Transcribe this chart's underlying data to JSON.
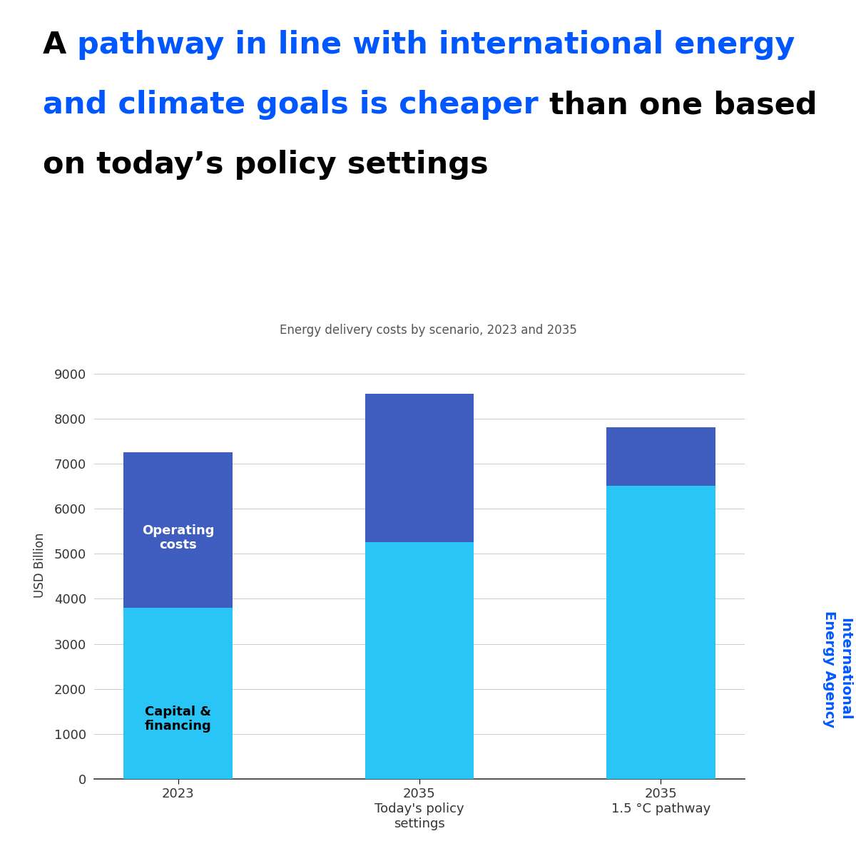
{
  "subtitle": "Energy delivery costs by scenario, 2023 and 2035",
  "ylabel": "USD Billion",
  "categories": [
    "2023",
    "2035\nToday's policy\nsettings",
    "2035\n1.5 °C pathway"
  ],
  "capital_financing": [
    3800,
    5250,
    6500
  ],
  "operating_costs": [
    3450,
    3300,
    1300
  ],
  "color_capital": "#29C5F6",
  "color_operating": "#3F5DBF",
  "label_capital": "Capital &\nfinancing",
  "label_operating": "Operating\ncosts",
  "ylim": [
    0,
    9500
  ],
  "yticks": [
    0,
    1000,
    2000,
    3000,
    4000,
    5000,
    6000,
    7000,
    8000,
    9000
  ],
  "iea_text": "International\nEnergy Agency",
  "iea_color": "#0057FF",
  "background_color": "#FFFFFF",
  "grid_color": "#CCCCCC",
  "title_line1_blue": "pathway in line with international energy",
  "title_line1_black_pre": "A ",
  "title_line2_blue": "and climate goals is cheaper",
  "title_line2_black": " than one based",
  "title_line3_black": "on today’s policy settings",
  "title_fontsize": 31,
  "subtitle_fontsize": 12,
  "tick_fontsize": 13,
  "ylabel_fontsize": 12,
  "label_fontsize": 13,
  "iea_fontsize": 14
}
